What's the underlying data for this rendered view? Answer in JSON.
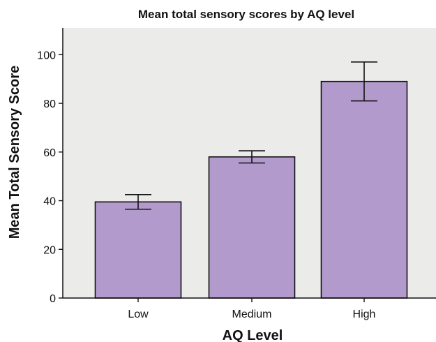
{
  "chart_data": {
    "type": "bar",
    "title": "Mean total sensory scores by AQ level",
    "xlabel": "AQ Level",
    "ylabel": "Mean Total Sensory Score",
    "categories": [
      "Low",
      "Medium",
      "High"
    ],
    "values": [
      39.5,
      58,
      89
    ],
    "error_bars": [
      {
        "low": 36.5,
        "high": 42.5
      },
      {
        "low": 55.5,
        "high": 60.5
      },
      {
        "low": 81,
        "high": 97
      }
    ],
    "ylim": [
      0,
      111
    ],
    "yticks": [
      0,
      20,
      40,
      60,
      80,
      100
    ],
    "grid": false,
    "legend": "none",
    "colors": {
      "bar_fill": "#b39acd",
      "bar_stroke": "#111111",
      "plot_background": "#ebecea"
    }
  }
}
